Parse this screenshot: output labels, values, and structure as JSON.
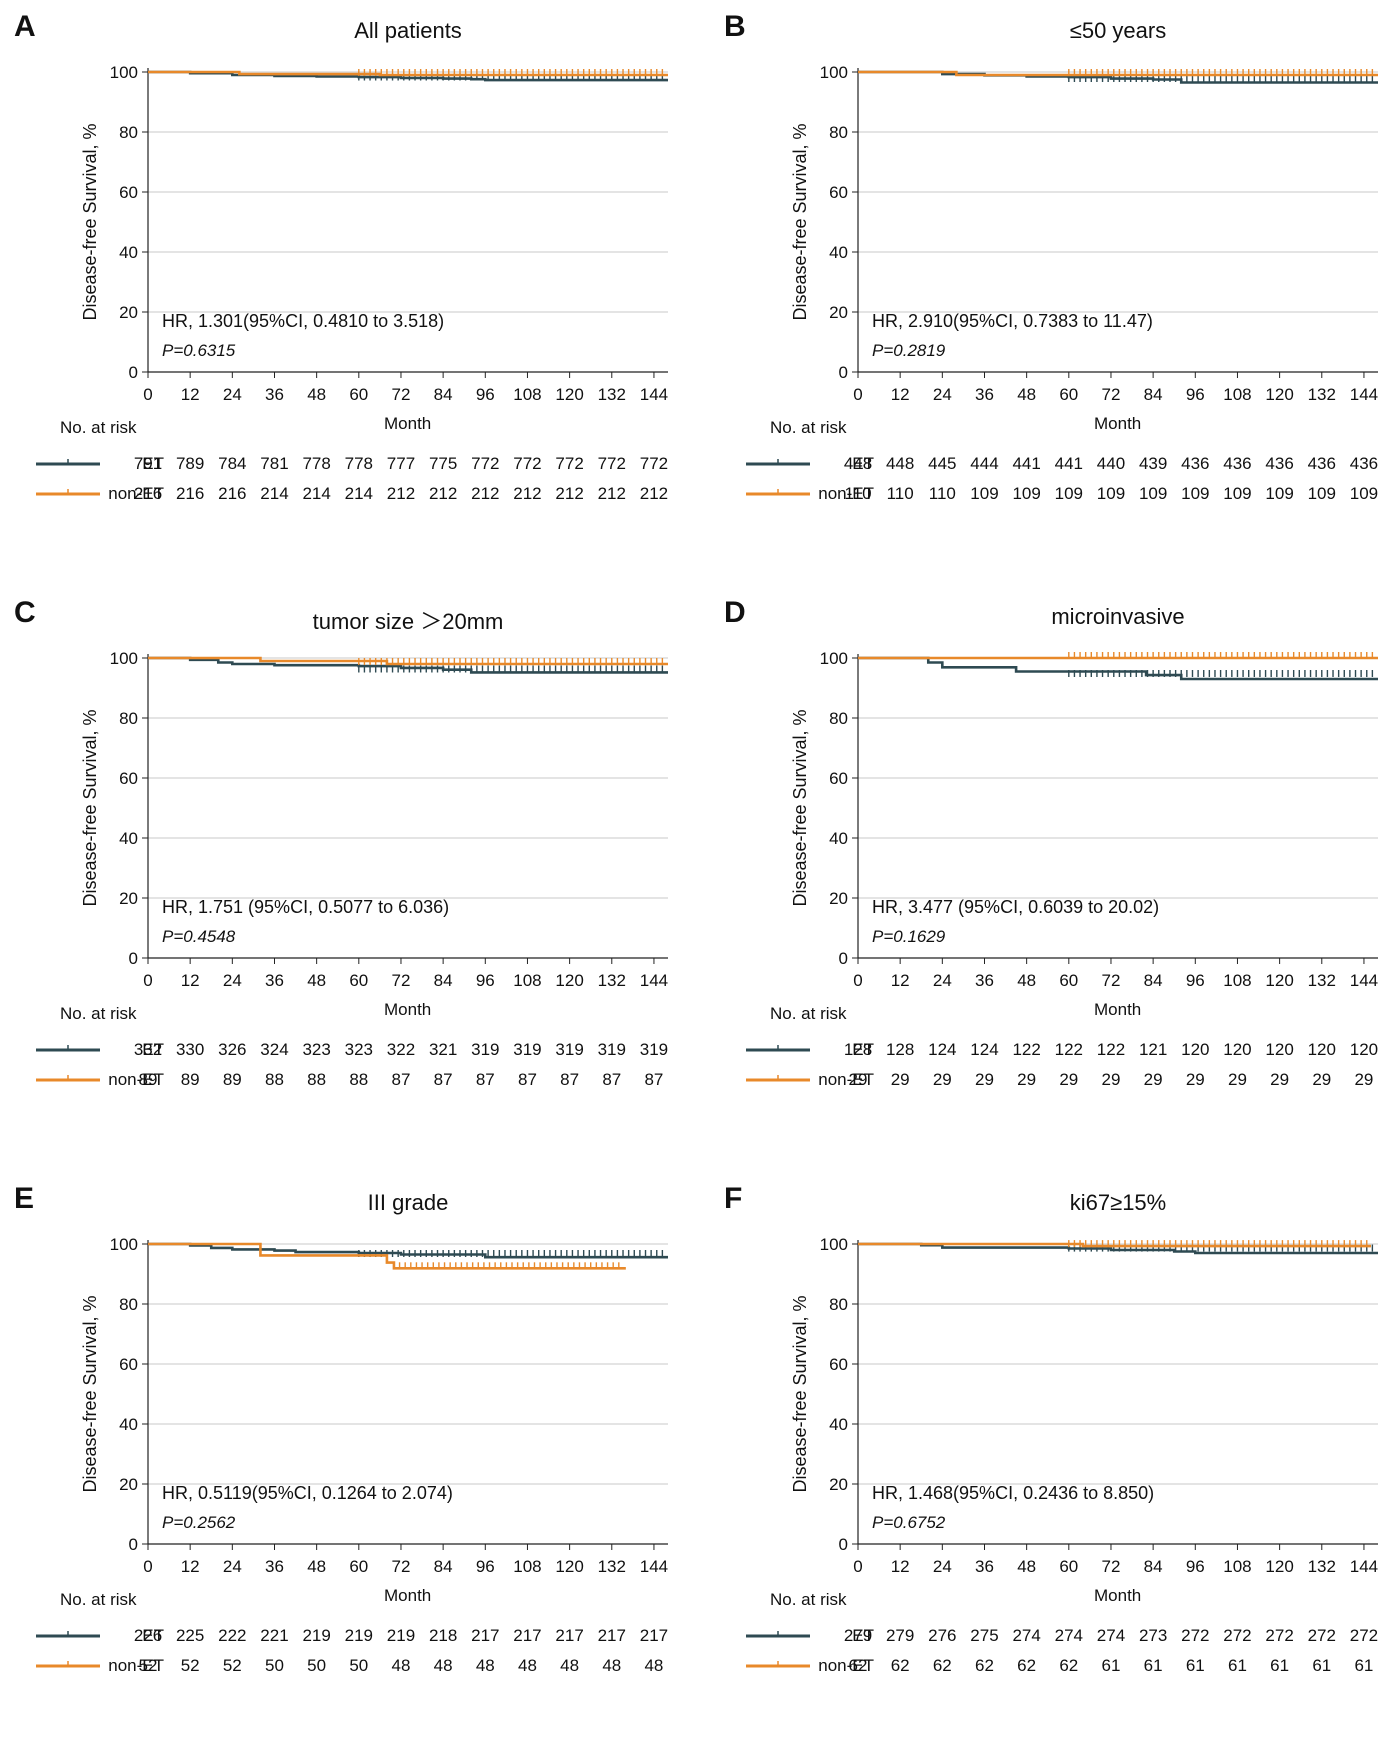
{
  "colors": {
    "ET": "#2e4a52",
    "nonET": "#e8892a",
    "grid": "#c8c8c8"
  },
  "chart_data": [
    {
      "panel": "A",
      "title": "All patients",
      "type": "line",
      "xlabel": "Month",
      "ylabel": "Disease-free Survival, %",
      "xticks": [
        0,
        12,
        24,
        36,
        48,
        60,
        72,
        84,
        96,
        108,
        120,
        132,
        144
      ],
      "yticks": [
        0,
        20,
        40,
        60,
        80,
        100
      ],
      "xlim": [
        0,
        148
      ],
      "ylim": [
        0,
        100
      ],
      "hr_text": "HR, 1.301(95%CI, 0.4810 to 3.518)",
      "p_text": "P=0.6315",
      "risk_header": "No. at risk",
      "series": [
        {
          "name": "ET",
          "risk": [
            "791",
            "789",
            "784",
            "781",
            "778",
            "778",
            "777",
            "775",
            "772",
            "772",
            "772",
            "772",
            "772"
          ],
          "curve": [
            [
              0,
              100
            ],
            [
              12,
              99.6
            ],
            [
              24,
              99
            ],
            [
              36,
              98.7
            ],
            [
              48,
              98.5
            ],
            [
              60,
              98.3
            ],
            [
              72,
              98
            ],
            [
              84,
              97.8
            ],
            [
              92,
              97.6
            ],
            [
              96,
              97.3
            ],
            [
              148,
              97.3
            ]
          ],
          "censor_from": 60,
          "censor_to": 147,
          "censor_y": 97.5
        },
        {
          "name": "non-ET",
          "risk": [
            "216",
            "216",
            "216",
            "214",
            "214",
            "214",
            "212",
            "212",
            "212",
            "212",
            "212",
            "212",
            "212"
          ],
          "curve": [
            [
              0,
              100
            ],
            [
              22,
              100
            ],
            [
              26,
              99.3
            ],
            [
              60,
              99.3
            ],
            [
              66,
              99
            ],
            [
              148,
              99
            ]
          ],
          "censor_from": 60,
          "censor_to": 147,
          "censor_y": 99
        }
      ]
    },
    {
      "panel": "B",
      "title": "≤50 years",
      "type": "line",
      "xlabel": "Month",
      "ylabel": "Disease-free Survival, %",
      "xticks": [
        0,
        12,
        24,
        36,
        48,
        60,
        72,
        84,
        96,
        108,
        120,
        132,
        144
      ],
      "yticks": [
        0,
        20,
        40,
        60,
        80,
        100
      ],
      "xlim": [
        0,
        148
      ],
      "ylim": [
        0,
        100
      ],
      "hr_text": "HR, 2.910(95%CI, 0.7383 to 11.47)",
      "p_text": "P=0.2819",
      "risk_header": "No. at risk",
      "series": [
        {
          "name": "ET",
          "risk": [
            "448",
            "448",
            "445",
            "444",
            "441",
            "441",
            "440",
            "439",
            "436",
            "436",
            "436",
            "436",
            "436"
          ],
          "curve": [
            [
              0,
              100
            ],
            [
              24,
              99.3
            ],
            [
              36,
              98.9
            ],
            [
              48,
              98.5
            ],
            [
              60,
              98.3
            ],
            [
              72,
              97.8
            ],
            [
              84,
              97.5
            ],
            [
              92,
              96.5
            ],
            [
              148,
              96.5
            ]
          ],
          "censor_from": 60,
          "censor_to": 147,
          "censor_y": 97
        },
        {
          "name": "non-ET",
          "risk": [
            "110",
            "110",
            "110",
            "109",
            "109",
            "109",
            "109",
            "109",
            "109",
            "109",
            "109",
            "109",
            "109"
          ],
          "curve": [
            [
              0,
              100
            ],
            [
              26,
              100
            ],
            [
              28,
              99
            ],
            [
              148,
              99
            ]
          ],
          "censor_from": 60,
          "censor_to": 147,
          "censor_y": 99
        }
      ]
    },
    {
      "panel": "C",
      "title": "tumor size ＞20mm",
      "type": "line",
      "xlabel": "Month",
      "ylabel": "Disease-free Survival, %",
      "xticks": [
        0,
        12,
        24,
        36,
        48,
        60,
        72,
        84,
        96,
        108,
        120,
        132,
        144
      ],
      "yticks": [
        0,
        20,
        40,
        60,
        80,
        100
      ],
      "xlim": [
        0,
        148
      ],
      "ylim": [
        0,
        100
      ],
      "hr_text": "HR, 1.751 (95%CI, 0.5077 to 6.036)",
      "p_text": "P=0.4548",
      "risk_header": "No. at risk",
      "series": [
        {
          "name": "ET",
          "risk": [
            "332",
            "330",
            "326",
            "324",
            "323",
            "323",
            "322",
            "321",
            "319",
            "319",
            "319",
            "319",
            "319"
          ],
          "curve": [
            [
              0,
              100
            ],
            [
              12,
              99.4
            ],
            [
              20,
              98.5
            ],
            [
              24,
              98
            ],
            [
              36,
              97.6
            ],
            [
              60,
              97.3
            ],
            [
              72,
              96.7
            ],
            [
              84,
              96.1
            ],
            [
              92,
              95.2
            ],
            [
              148,
              95.2
            ]
          ],
          "censor_from": 60,
          "censor_to": 147,
          "censor_y": 95.5
        },
        {
          "name": "non-ET",
          "risk": [
            "89",
            "89",
            "89",
            "88",
            "88",
            "88",
            "87",
            "87",
            "87",
            "87",
            "87",
            "87",
            "87"
          ],
          "curve": [
            [
              0,
              100
            ],
            [
              30,
              100
            ],
            [
              32,
              99
            ],
            [
              60,
              99
            ],
            [
              68,
              98
            ],
            [
              148,
              98
            ]
          ],
          "censor_from": 60,
          "censor_to": 147,
          "censor_y": 98
        }
      ]
    },
    {
      "panel": "D",
      "title": "microinvasive",
      "type": "line",
      "xlabel": "Month",
      "ylabel": "Disease-free Survival, %",
      "xticks": [
        0,
        12,
        24,
        36,
        48,
        60,
        72,
        84,
        96,
        108,
        120,
        132,
        144
      ],
      "yticks": [
        0,
        20,
        40,
        60,
        80,
        100
      ],
      "xlim": [
        0,
        148
      ],
      "ylim": [
        0,
        100
      ],
      "hr_text": "HR, 3.477 (95%CI, 0.6039 to 20.02)",
      "p_text": "P=0.1629",
      "risk_header": "No. at risk",
      "series": [
        {
          "name": "ET",
          "risk": [
            "128",
            "128",
            "124",
            "124",
            "122",
            "122",
            "122",
            "121",
            "120",
            "120",
            "120",
            "120",
            "120"
          ],
          "curve": [
            [
              0,
              100
            ],
            [
              18,
              100
            ],
            [
              20,
              98.5
            ],
            [
              24,
              96.9
            ],
            [
              42,
              96.9
            ],
            [
              45,
              95.5
            ],
            [
              80,
              95.5
            ],
            [
              82,
              94.3
            ],
            [
              90,
              94.3
            ],
            [
              92,
              93
            ],
            [
              148,
              93
            ]
          ],
          "censor_from": 60,
          "censor_to": 147,
          "censor_y": 94
        },
        {
          "name": "non-ET",
          "risk": [
            "29",
            "29",
            "29",
            "29",
            "29",
            "29",
            "29",
            "29",
            "29",
            "29",
            "29",
            "29",
            "29"
          ],
          "curve": [
            [
              0,
              100
            ],
            [
              148,
              100
            ]
          ],
          "censor_from": 60,
          "censor_to": 147,
          "censor_y": 100
        }
      ]
    },
    {
      "panel": "E",
      "title": "III grade",
      "type": "line",
      "xlabel": "Month",
      "ylabel": "Disease-free Survival, %",
      "xticks": [
        0,
        12,
        24,
        36,
        48,
        60,
        72,
        84,
        96,
        108,
        120,
        132,
        144
      ],
      "yticks": [
        0,
        20,
        40,
        60,
        80,
        100
      ],
      "xlim": [
        0,
        148
      ],
      "ylim": [
        0,
        100
      ],
      "hr_text": "HR, 0.5119(95%CI, 0.1264 to 2.074)",
      "p_text": "P=0.2562",
      "risk_header": "No. at risk",
      "series": [
        {
          "name": "ET",
          "risk": [
            "226",
            "225",
            "222",
            "221",
            "219",
            "219",
            "219",
            "218",
            "217",
            "217",
            "217",
            "217",
            "217"
          ],
          "curve": [
            [
              0,
              100
            ],
            [
              12,
              99.5
            ],
            [
              18,
              98.7
            ],
            [
              24,
              98.2
            ],
            [
              36,
              97.8
            ],
            [
              42,
              97.3
            ],
            [
              60,
              97
            ],
            [
              72,
              96.5
            ],
            [
              96,
              95.6
            ],
            [
              148,
              95.6
            ]
          ],
          "censor_from": 60,
          "censor_to": 147,
          "censor_y": 96
        },
        {
          "name": "non-ET",
          "risk": [
            "52",
            "52",
            "52",
            "50",
            "50",
            "50",
            "48",
            "48",
            "48",
            "48",
            "48",
            "48",
            "48"
          ],
          "curve": [
            [
              0,
              100
            ],
            [
              12,
              100
            ],
            [
              26,
              100
            ],
            [
              32,
              96.2
            ],
            [
              64,
              96.2
            ],
            [
              68,
              93.8
            ],
            [
              70,
              91.9
            ],
            [
              136,
              91.9
            ]
          ],
          "censor_from": 70,
          "censor_to": 134,
          "censor_y": 91.9
        }
      ]
    },
    {
      "panel": "F",
      "title": "ki67≥15%",
      "type": "line",
      "xlabel": "Month",
      "ylabel": "Disease-free Survival, %",
      "xticks": [
        0,
        12,
        24,
        36,
        48,
        60,
        72,
        84,
        96,
        108,
        120,
        132,
        144
      ],
      "yticks": [
        0,
        20,
        40,
        60,
        80,
        100
      ],
      "xlim": [
        0,
        148
      ],
      "ylim": [
        0,
        100
      ],
      "hr_text": "HR, 1.468(95%CI, 0.2436 to 8.850)",
      "p_text": "P=0.6752",
      "risk_header": "No. at risk",
      "series": [
        {
          "name": "ET",
          "risk": [
            "279",
            "279",
            "276",
            "275",
            "274",
            "274",
            "274",
            "273",
            "272",
            "272",
            "272",
            "272",
            "272"
          ],
          "curve": [
            [
              0,
              100
            ],
            [
              18,
              99.6
            ],
            [
              24,
              98.8
            ],
            [
              60,
              98.5
            ],
            [
              72,
              98
            ],
            [
              90,
              97.5
            ],
            [
              96,
              97
            ],
            [
              148,
              97
            ]
          ],
          "censor_from": 60,
          "censor_to": 147,
          "censor_y": 97.8
        },
        {
          "name": "non-ET",
          "risk": [
            "62",
            "62",
            "62",
            "62",
            "62",
            "62",
            "61",
            "61",
            "61",
            "61",
            "61",
            "61",
            "61"
          ],
          "curve": [
            [
              0,
              100
            ],
            [
              60,
              100
            ],
            [
              64,
              99.3
            ],
            [
              146,
              99.3
            ]
          ],
          "censor_from": 60,
          "censor_to": 146,
          "censor_y": 99.3
        }
      ]
    }
  ]
}
